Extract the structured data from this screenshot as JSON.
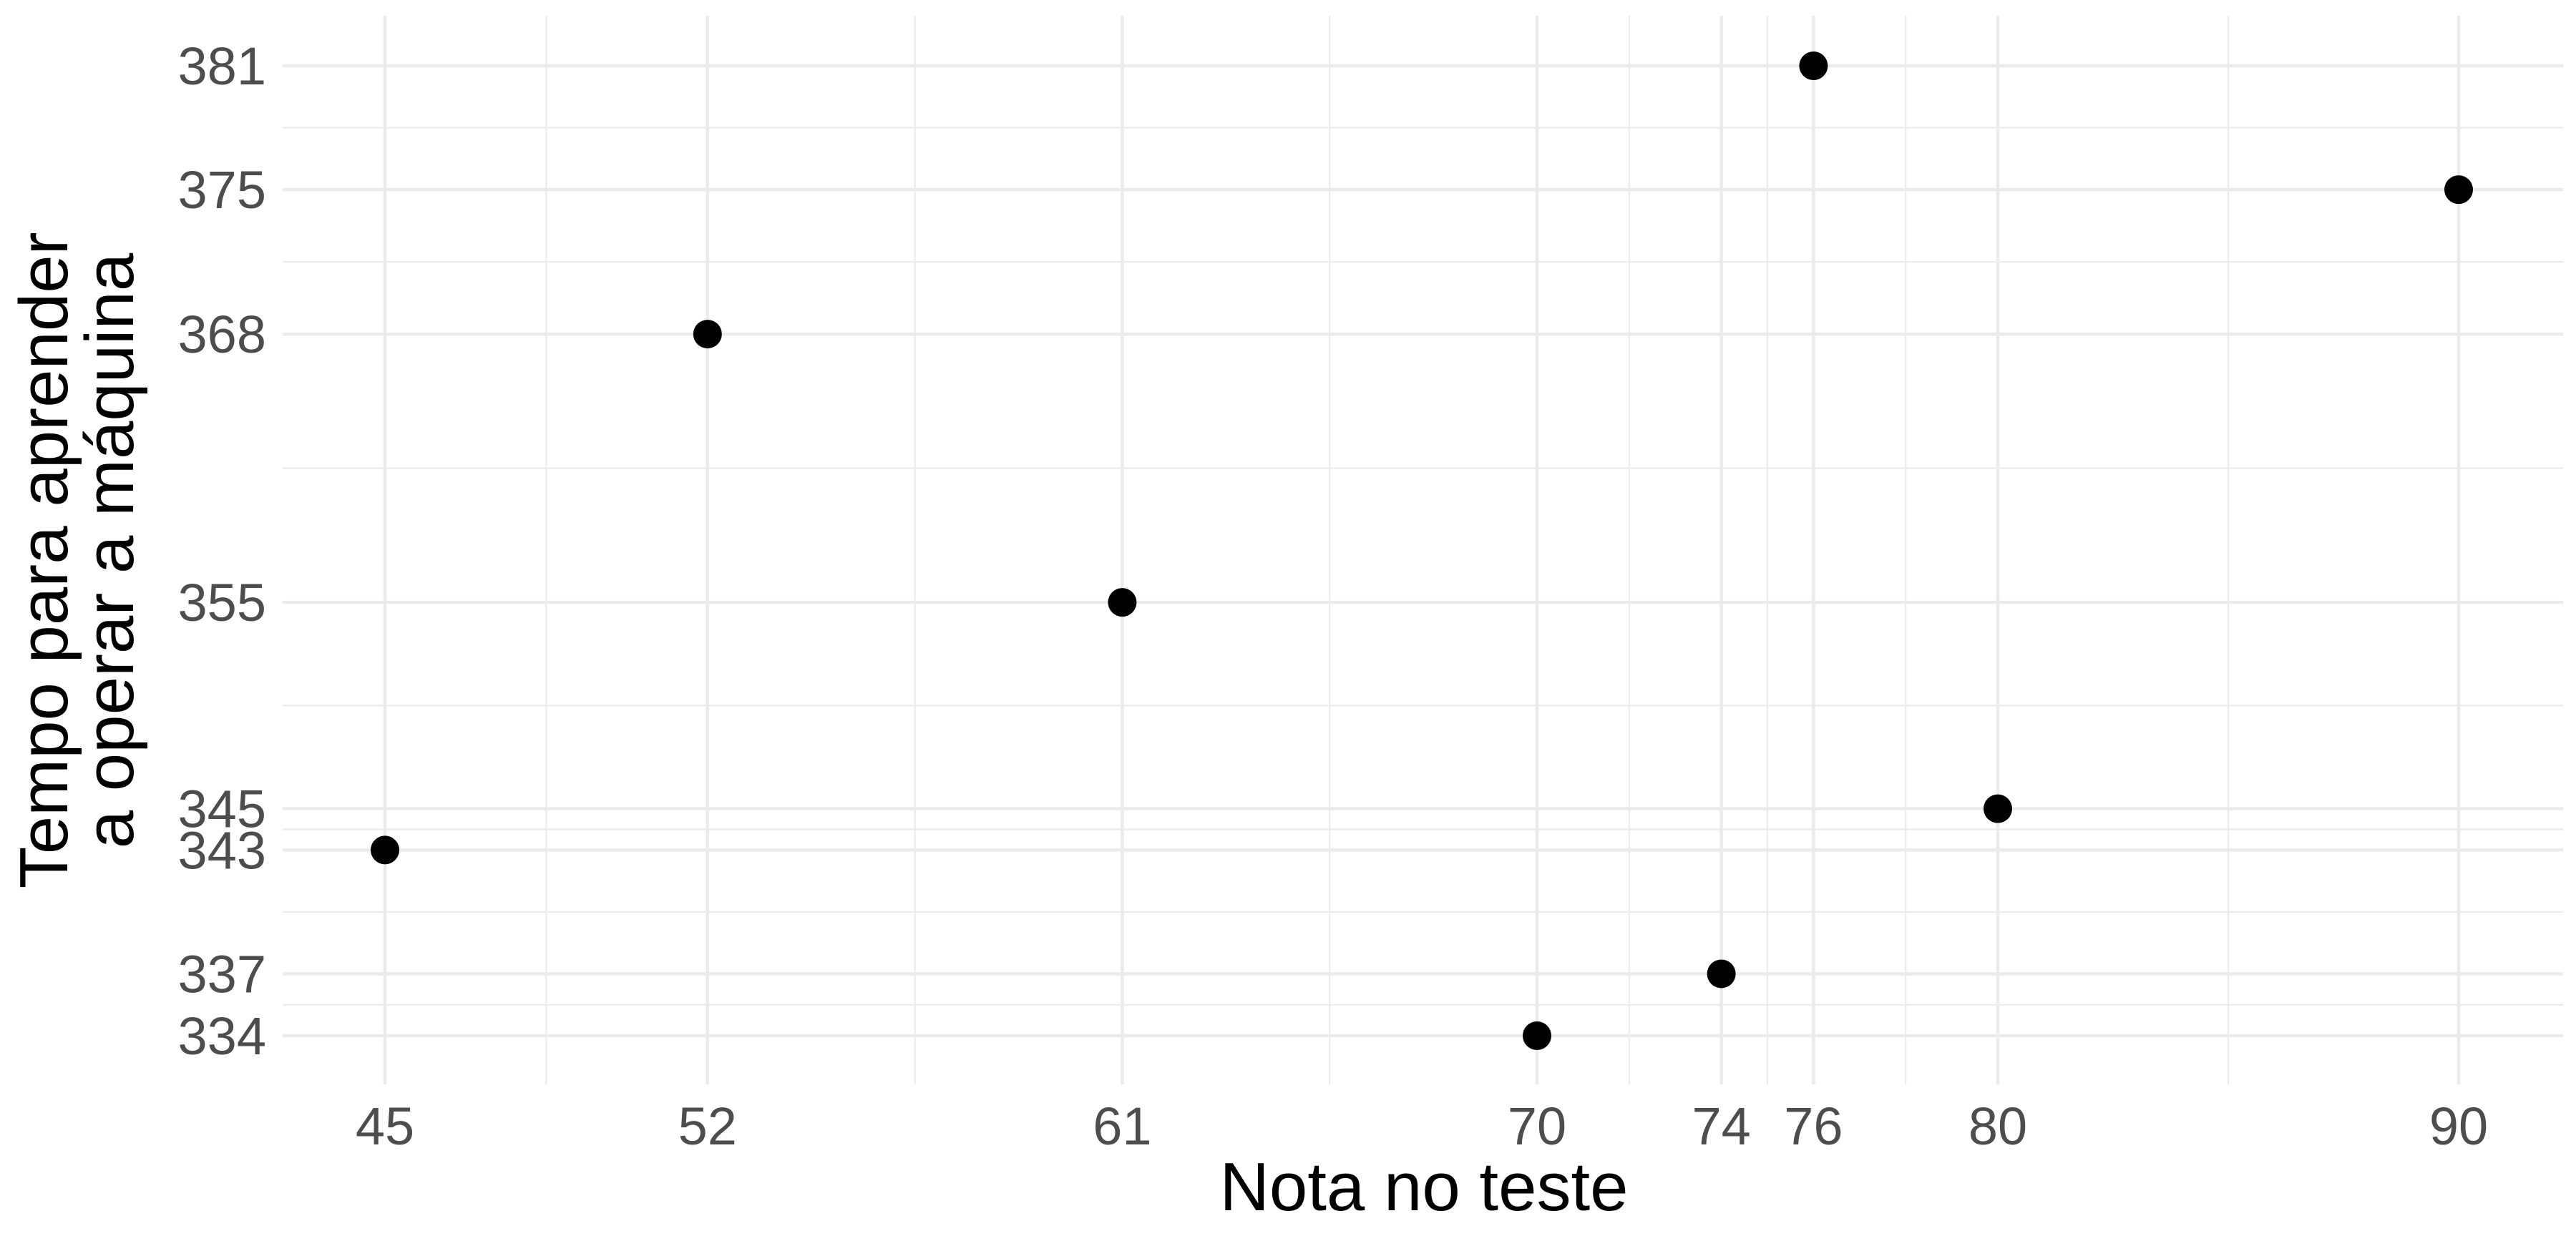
{
  "chart_data": {
    "type": "scatter",
    "title": "",
    "xlabel": "Nota no teste",
    "ylabel": [
      "Tempo para aprender",
      "a operar a máquina"
    ],
    "xlim": [
      42.8,
      91.8
    ],
    "ylim": [
      331.8,
      383.2
    ],
    "x_ticks": [
      45,
      52,
      61,
      70,
      74,
      76,
      80,
      90
    ],
    "y_ticks": [
      334,
      337,
      343,
      345,
      355,
      368,
      375,
      381
    ],
    "points": [
      {
        "x": 45,
        "y": 343
      },
      {
        "x": 52,
        "y": 368
      },
      {
        "x": 61,
        "y": 355
      },
      {
        "x": 70,
        "y": 334
      },
      {
        "x": 74,
        "y": 337
      },
      {
        "x": 76,
        "y": 381
      },
      {
        "x": 80,
        "y": 345
      },
      {
        "x": 90,
        "y": 375
      }
    ],
    "point_color": "#000000",
    "grid": true,
    "legend": "none"
  }
}
